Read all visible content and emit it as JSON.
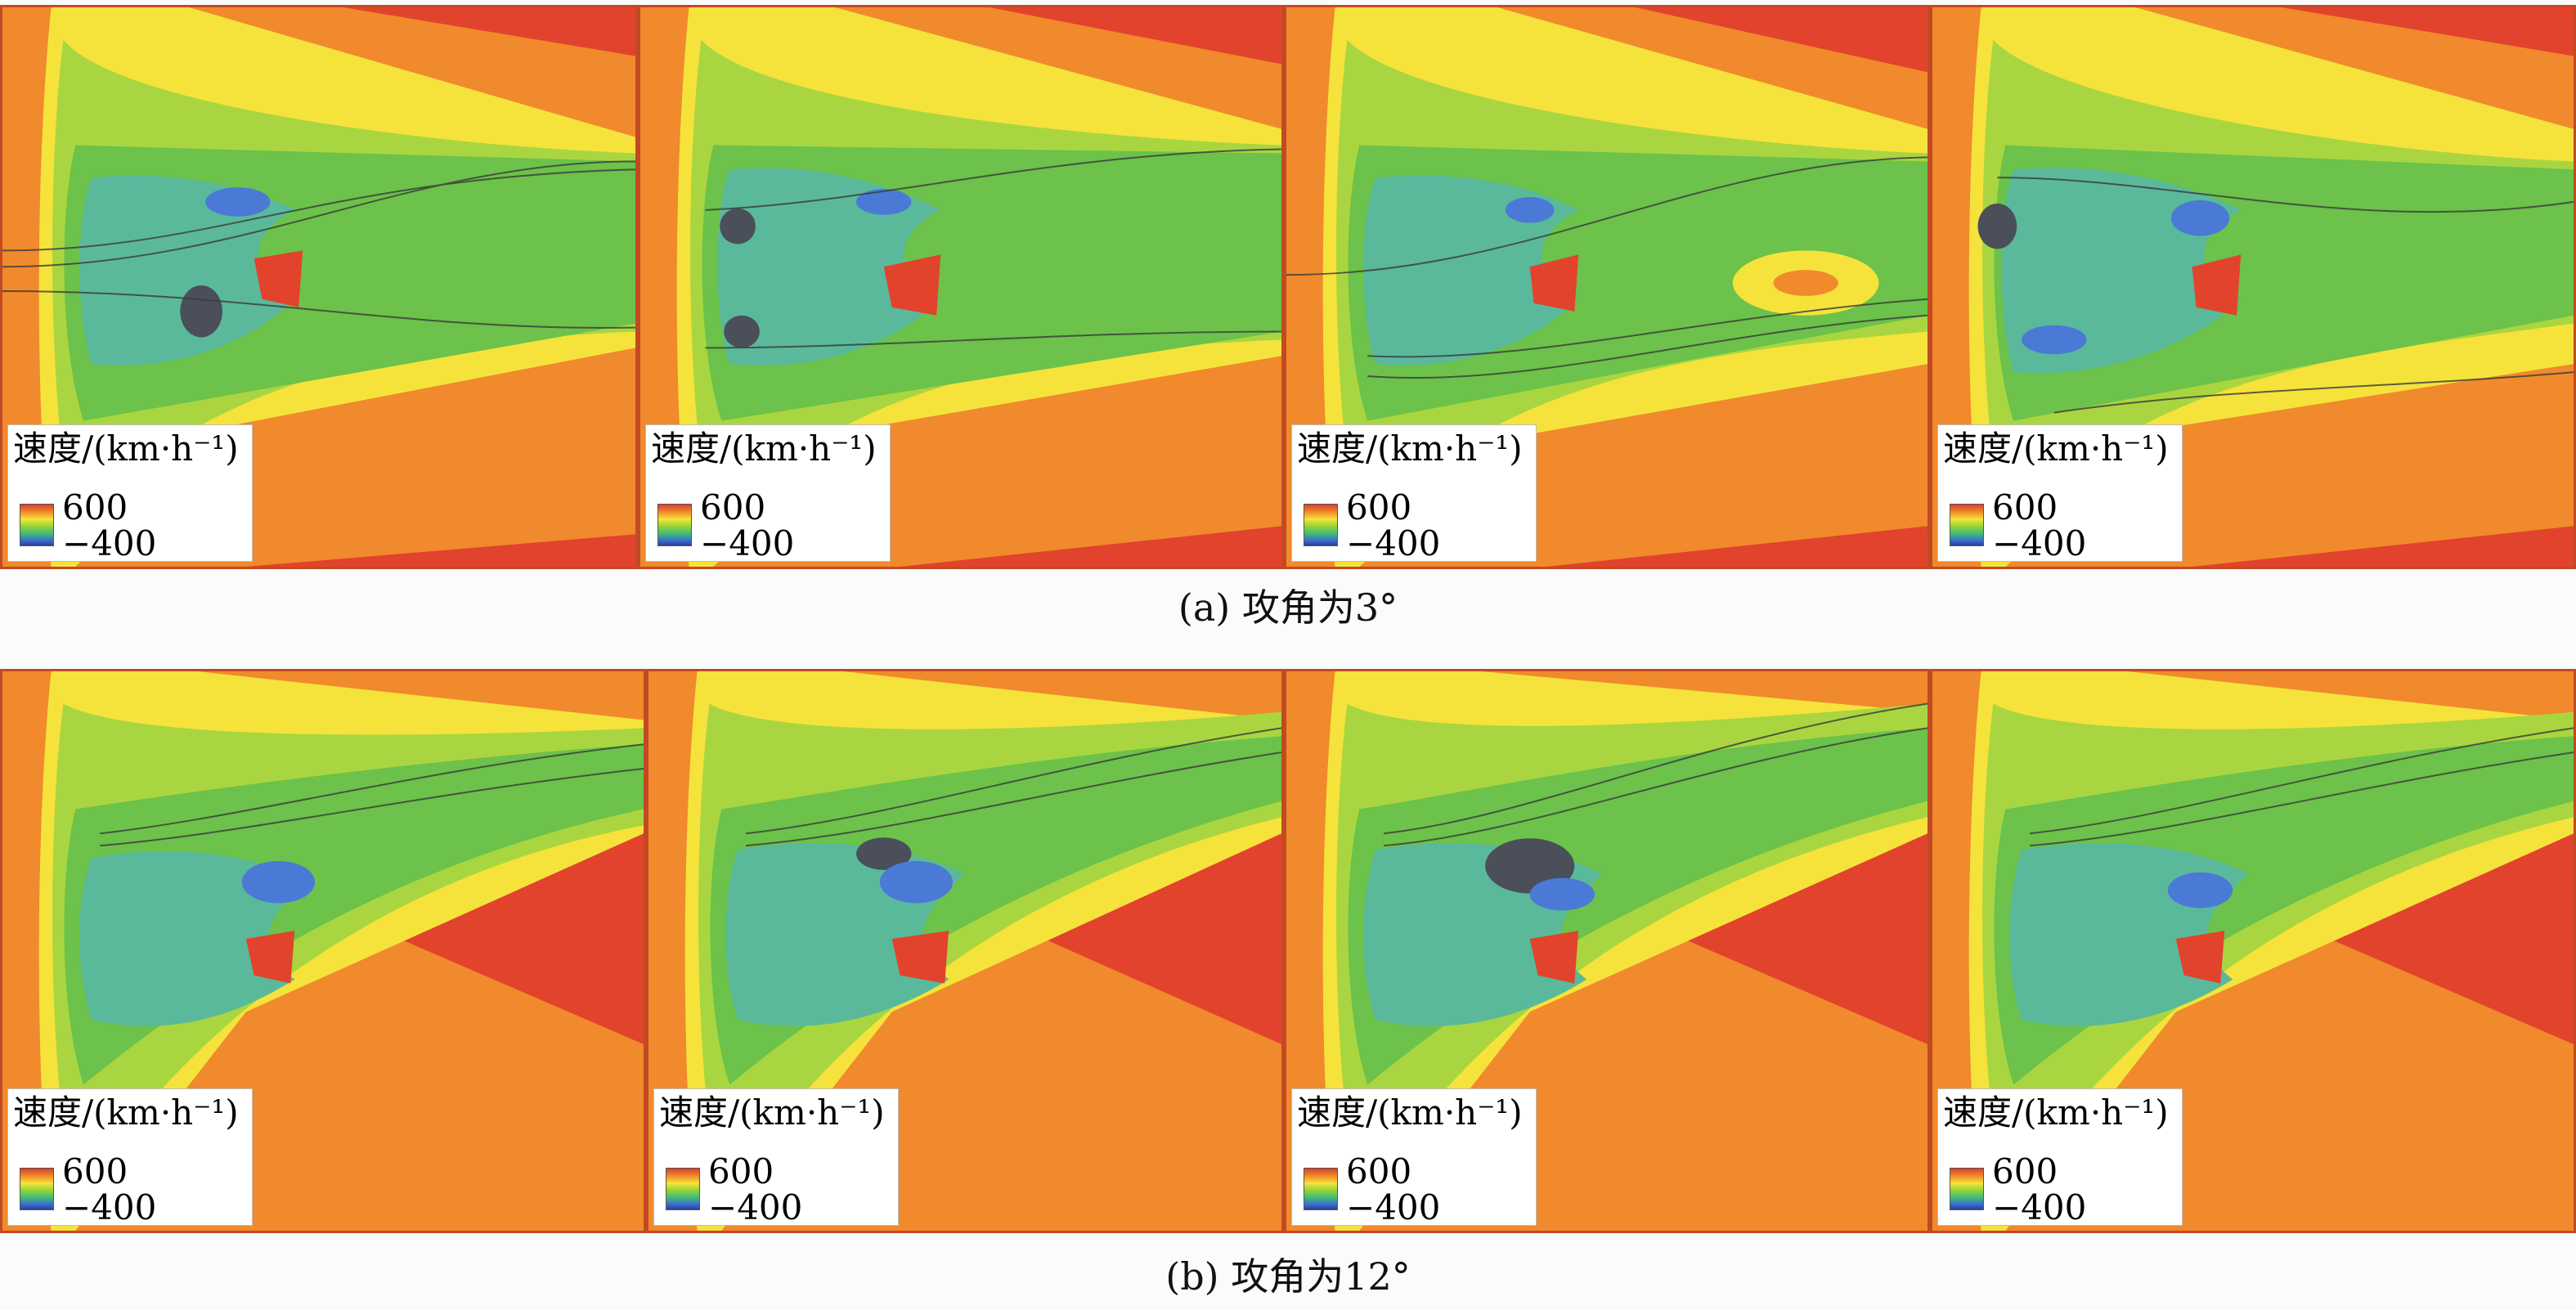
{
  "rows": [
    {
      "caption": "(a) 攻角为3°",
      "panels": [
        {
          "legend_title": "速度/(km·h⁻¹)",
          "legend_max": "600",
          "legend_min": "−400"
        },
        {
          "legend_title": "速度/(km·h⁻¹)",
          "legend_max": "600",
          "legend_min": "−400"
        },
        {
          "legend_title": "速度/(km·h⁻¹)",
          "legend_max": "600",
          "legend_min": "−400"
        },
        {
          "legend_title": "速度/(km·h⁻¹)",
          "legend_max": "600",
          "legend_min": "−400"
        }
      ]
    },
    {
      "caption": "(b) 攻角为12°",
      "panels": [
        {
          "legend_title": "速度/(km·h⁻¹)",
          "legend_max": "600",
          "legend_min": "−400"
        },
        {
          "legend_title": "速度/(km·h⁻¹)",
          "legend_max": "600",
          "legend_min": "−400"
        },
        {
          "legend_title": "速度/(km·h⁻¹)",
          "legend_max": "600",
          "legend_min": "−400"
        },
        {
          "legend_title": "速度/(km·h⁻¹)",
          "legend_max": "600",
          "legend_min": "−400"
        }
      ]
    }
  ],
  "colors": {
    "red": "#e2432c",
    "orange": "#f08a2c",
    "yellow": "#f5e33c",
    "lightgreen": "#a9d640",
    "green": "#6cc24a",
    "teal": "#5ab99a",
    "blue": "#4a7ad6",
    "darkgray": "#4a4f59"
  }
}
